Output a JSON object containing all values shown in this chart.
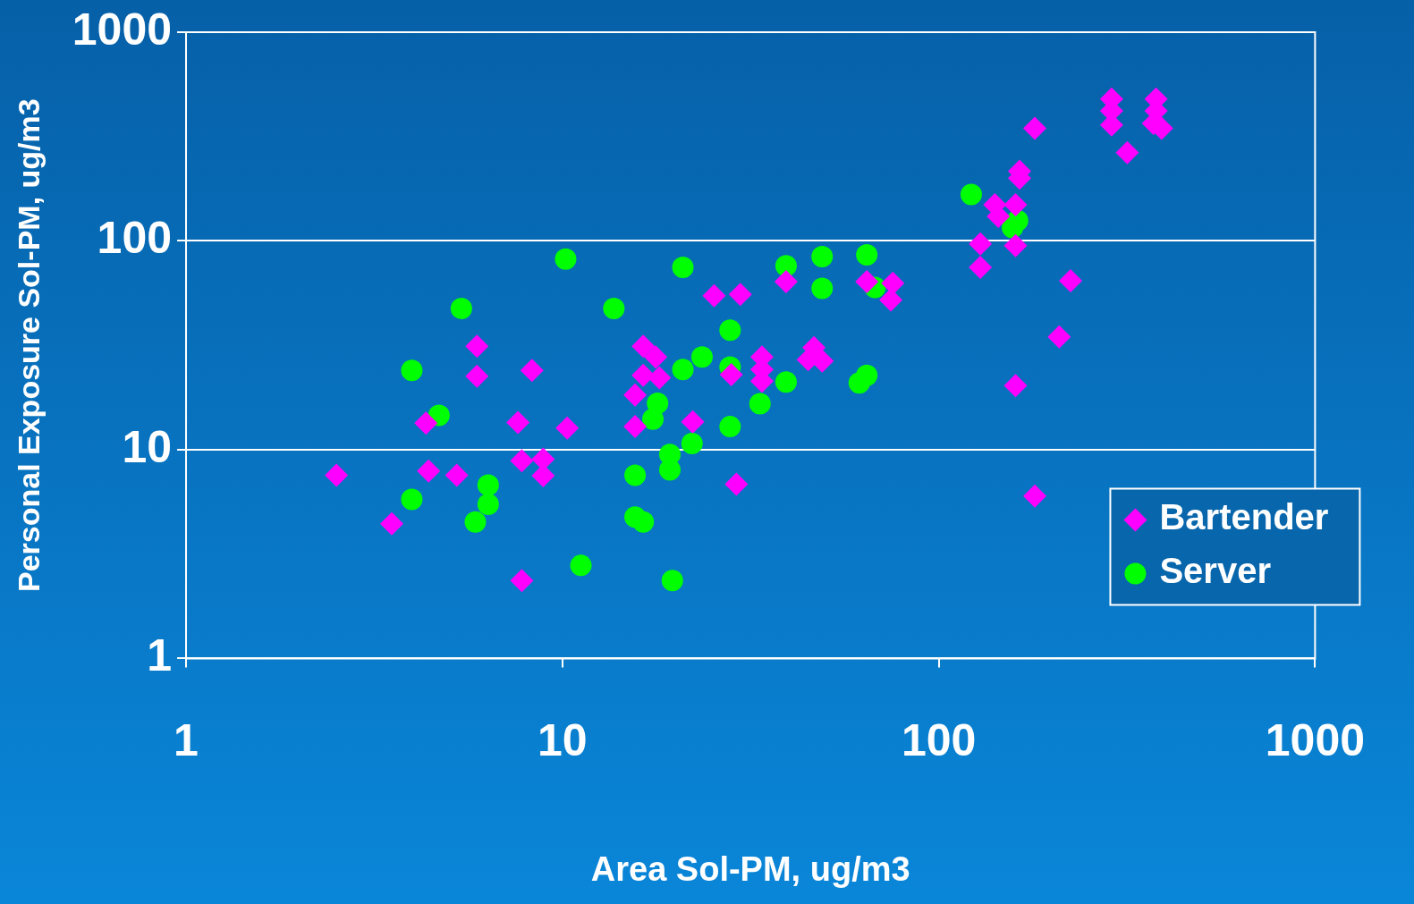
{
  "chart_data": {
    "type": "scatter",
    "xlabel": "Area Sol-PM, ug/m3",
    "ylabel": "Personal Exposure Sol-PM, ug/m3",
    "log": "xy",
    "grid": "y",
    "legend": "bottom right",
    "xlim": [
      1,
      1000
    ],
    "ylim": [
      1,
      1000
    ],
    "xticks": [
      1,
      10,
      100,
      1000
    ],
    "yticks": [
      1,
      10,
      100,
      1000
    ],
    "series": [
      {
        "name": "Bartender",
        "color": "#ff00ff",
        "marker": "diamond",
        "x": [
          2.51,
          3.52,
          4.34,
          4.41,
          5.24,
          5.93,
          5.93,
          7.62,
          7.8,
          8.3,
          8.89,
          8.89,
          7.8,
          10.3,
          15.6,
          15.6,
          16.4,
          16.4,
          17.7,
          18.1,
          22.2,
          25.3,
          29.7,
          28.1,
          29,
          33.9,
          33.9,
          33.9,
          39.3,
          46.6,
          45,
          49,
          64.4,
          75.5,
          74.6,
          129,
          129,
          141,
          144,
          160,
          160,
          160,
          164,
          164,
          180,
          180,
          209,
          224,
          288,
          288,
          288,
          317,
          378,
          378,
          372,
          391
        ],
        "values": [
          7.55,
          4.42,
          13.4,
          7.91,
          7.55,
          31.3,
          22.5,
          13.5,
          8.85,
          24,
          9,
          7.5,
          2.36,
          12.7,
          18.3,
          12.9,
          31.3,
          22.7,
          27.8,
          22.1,
          13.6,
          54.6,
          55.5,
          22.9,
          6.83,
          27.8,
          24.2,
          21.3,
          63.8,
          30.8,
          27,
          26.6,
          63.8,
          62.7,
          52.1,
          96.8,
          74.7,
          149,
          131,
          149,
          95,
          20.3,
          216,
          200,
          346,
          6,
          34.7,
          64.4,
          478,
          420,
          359,
          265,
          478,
          420,
          366,
          346
        ]
      },
      {
        "name": "Server",
        "color": "#00ff00",
        "marker": "circle",
        "x": [
          3.98,
          3.98,
          4.7,
          5.39,
          5.87,
          6.35,
          6.35,
          10.2,
          11.2,
          13.7,
          15.6,
          15.6,
          16.4,
          17.4,
          17.9,
          19.3,
          19.3,
          19.6,
          20.9,
          20.9,
          22.1,
          23.5,
          27.9,
          27.9,
          27.9,
          33.5,
          39.3,
          39.3,
          49,
          49,
          61.5,
          64.4,
          64.4,
          67.7,
          122,
          157,
          162
        ],
        "values": [
          24,
          5.78,
          14.6,
          47.5,
          4.51,
          6.77,
          5.47,
          81.9,
          2.79,
          47.5,
          7.55,
          4.76,
          4.51,
          14,
          16.7,
          8,
          9.5,
          2.36,
          74.7,
          24.2,
          10.7,
          27.8,
          37.4,
          24.9,
          12.9,
          16.6,
          76.1,
          21.1,
          84.2,
          59.3,
          20.9,
          22.7,
          85.8,
          59.9,
          167,
          116,
          125
        ]
      }
    ]
  }
}
